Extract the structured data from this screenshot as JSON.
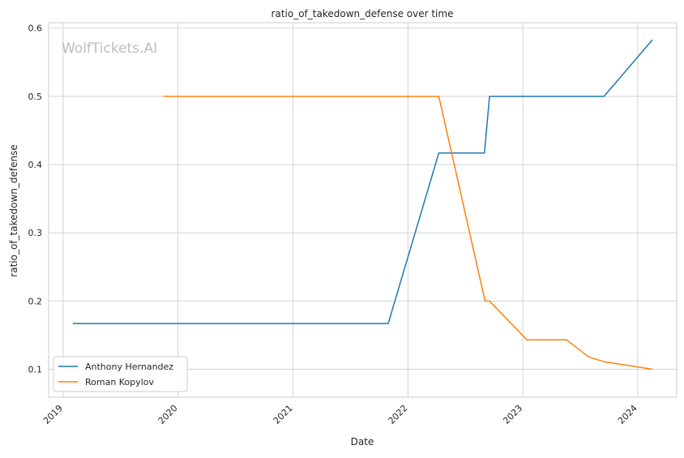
{
  "chart_data": {
    "type": "line",
    "title": "ratio_of_takedown_defense over time",
    "xlabel": "Date",
    "ylabel": "ratio_of_takedown_defense",
    "watermark": "WolfTickets.AI",
    "x_tick_labels": [
      "2019",
      "2020",
      "2021",
      "2022",
      "2023",
      "2024"
    ],
    "y_tick_labels": [
      "0.1",
      "0.2",
      "0.3",
      "0.4",
      "0.5",
      "0.6"
    ],
    "y_ticks": [
      0.1,
      0.2,
      0.3,
      0.4,
      0.5,
      0.6
    ],
    "xlim": [
      "2018-11-16",
      "2024-05-04"
    ],
    "ylim": [
      0.059,
      0.608
    ],
    "grid": true,
    "legend_position": "lower-left",
    "series": [
      {
        "name": "Anthony Hernandez",
        "color": "#1f77b4",
        "points": [
          [
            "2019-02-01",
            0.167
          ],
          [
            "2021-10-30",
            0.167
          ],
          [
            "2022-04-09",
            0.417
          ],
          [
            "2022-09-01",
            0.417
          ],
          [
            "2022-09-17",
            0.5
          ],
          [
            "2023-09-16",
            0.5
          ],
          [
            "2024-02-17",
            0.583
          ]
        ]
      },
      {
        "name": "Roman Kopylov",
        "color": "#ff7f0e",
        "points": [
          [
            "2019-11-16",
            0.5
          ],
          [
            "2022-04-09",
            0.5
          ],
          [
            "2022-09-03",
            0.2
          ],
          [
            "2022-09-17",
            0.2
          ],
          [
            "2023-01-14",
            0.143
          ],
          [
            "2023-05-20",
            0.143
          ],
          [
            "2023-07-29",
            0.118
          ],
          [
            "2023-09-16",
            0.111
          ],
          [
            "2024-02-17",
            0.1
          ]
        ]
      }
    ]
  }
}
